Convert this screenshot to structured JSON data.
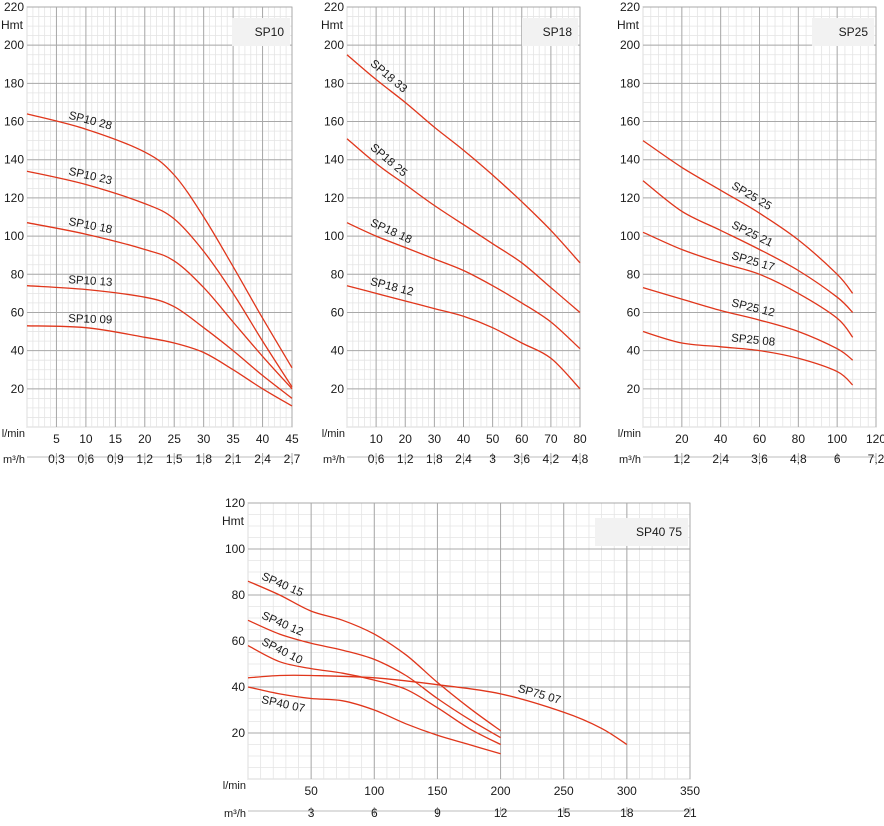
{
  "chart_data": [
    {
      "type": "line",
      "title": "SP10",
      "ylabel": "Hmt",
      "xlabel": "l/min",
      "x2label": "m³/h",
      "ylim": [
        0,
        220
      ],
      "xlim": [
        0,
        45
      ],
      "yticks": [
        20,
        40,
        60,
        80,
        100,
        120,
        140,
        160,
        180,
        200,
        220
      ],
      "xticks": [
        5,
        10,
        15,
        20,
        25,
        30,
        35,
        40,
        45
      ],
      "x2ticks": [
        "0,3",
        "0,6",
        "0,9",
        "1,2",
        "1,5",
        "1,8",
        "2,1",
        "2,4",
        "2,7"
      ],
      "grid": true,
      "series": [
        {
          "name": "SP10 28",
          "x": [
            0,
            10,
            20,
            25,
            30,
            35,
            40,
            45
          ],
          "y": [
            164,
            156,
            144,
            132,
            110,
            84,
            57,
            31
          ]
        },
        {
          "name": "SP10 23",
          "x": [
            0,
            10,
            20,
            25,
            30,
            35,
            40,
            45
          ],
          "y": [
            134,
            127,
            117,
            109,
            92,
            70,
            45,
            21
          ]
        },
        {
          "name": "SP10 18",
          "x": [
            0,
            10,
            20,
            25,
            30,
            35,
            40,
            45
          ],
          "y": [
            107,
            101,
            93,
            87,
            73,
            55,
            37,
            20
          ]
        },
        {
          "name": "SP10 13",
          "x": [
            0,
            10,
            20,
            25,
            30,
            35,
            40,
            45
          ],
          "y": [
            74,
            72,
            68,
            63,
            52,
            40,
            27,
            15
          ]
        },
        {
          "name": "SP10 09",
          "x": [
            0,
            10,
            20,
            25,
            30,
            35,
            40,
            45
          ],
          "y": [
            53,
            52,
            47,
            44,
            39,
            30,
            20,
            11
          ]
        }
      ]
    },
    {
      "type": "line",
      "title": "SP18",
      "ylabel": "Hmt",
      "xlabel": "l/min",
      "x2label": "m³/h",
      "ylim": [
        0,
        220
      ],
      "xlim": [
        0,
        80
      ],
      "yticks": [
        20,
        40,
        60,
        80,
        100,
        120,
        140,
        160,
        180,
        200,
        220
      ],
      "xticks": [
        10,
        20,
        30,
        40,
        50,
        60,
        70,
        80
      ],
      "x2ticks": [
        "0,6",
        "1,2",
        "1,8",
        "2,4",
        "3",
        "3,6",
        "4,2",
        "4,8"
      ],
      "grid": true,
      "series": [
        {
          "name": "SP18 33",
          "x": [
            0,
            10,
            20,
            30,
            40,
            50,
            60,
            70,
            80
          ],
          "y": [
            195,
            182,
            170,
            157,
            145,
            132,
            118,
            103,
            86
          ]
        },
        {
          "name": "SP18 25",
          "x": [
            0,
            10,
            20,
            30,
            40,
            50,
            60,
            70,
            80
          ],
          "y": [
            151,
            138,
            127,
            116,
            106,
            96,
            86,
            73,
            60
          ]
        },
        {
          "name": "SP18 18",
          "x": [
            0,
            10,
            20,
            30,
            40,
            50,
            60,
            70,
            80
          ],
          "y": [
            107,
            100,
            94,
            88,
            82,
            74,
            65,
            55,
            41
          ]
        },
        {
          "name": "SP18 12",
          "x": [
            0,
            10,
            20,
            30,
            40,
            50,
            60,
            70,
            80
          ],
          "y": [
            74,
            70,
            66,
            62,
            58,
            52,
            44,
            36,
            20
          ]
        }
      ]
    },
    {
      "type": "line",
      "title": "SP25",
      "ylabel": "Hmt",
      "xlabel": "l/min",
      "x2label": "m³/h",
      "ylim": [
        0,
        220
      ],
      "xlim": [
        0,
        120
      ],
      "yticks": [
        20,
        40,
        60,
        80,
        100,
        120,
        140,
        160,
        180,
        200,
        220
      ],
      "xticks": [
        20,
        40,
        60,
        80,
        100,
        120
      ],
      "x2ticks": [
        "1,2",
        "2,4",
        "3,6",
        "4,8",
        "6",
        "7,2"
      ],
      "grid": true,
      "series": [
        {
          "name": "SP25 25",
          "x": [
            0,
            20,
            40,
            60,
            80,
            100,
            108
          ],
          "y": [
            150,
            136,
            124,
            112,
            98,
            80,
            70
          ]
        },
        {
          "name": "SP25 21",
          "x": [
            0,
            20,
            40,
            60,
            80,
            100,
            108
          ],
          "y": [
            129,
            113,
            103,
            93,
            82,
            68,
            60
          ]
        },
        {
          "name": "SP25 17",
          "x": [
            0,
            20,
            40,
            60,
            80,
            100,
            108
          ],
          "y": [
            102,
            93,
            86,
            80,
            70,
            57,
            47
          ]
        },
        {
          "name": "SP25 12",
          "x": [
            0,
            20,
            40,
            60,
            80,
            100,
            108
          ],
          "y": [
            73,
            67,
            61,
            56,
            50,
            41,
            35
          ]
        },
        {
          "name": "SP25 08",
          "x": [
            0,
            20,
            40,
            60,
            80,
            100,
            108
          ],
          "y": [
            50,
            44,
            42,
            40,
            36,
            29,
            22
          ]
        }
      ]
    },
    {
      "type": "line",
      "title": "SP40 75",
      "ylabel": "Hmt",
      "xlabel": "l/min",
      "x2label": "m³/h",
      "ylim": [
        0,
        120
      ],
      "xlim": [
        0,
        350
      ],
      "yticks": [
        20,
        40,
        60,
        80,
        100,
        120
      ],
      "xticks": [
        50,
        100,
        150,
        200,
        250,
        300,
        350
      ],
      "x2ticks": [
        "3",
        "6",
        "9",
        "12",
        "15",
        "18",
        "21"
      ],
      "grid": true,
      "series": [
        {
          "name": "SP40 15",
          "x": [
            0,
            25,
            50,
            75,
            100,
            125,
            150,
            175,
            200
          ],
          "y": [
            86,
            80,
            73,
            69,
            63,
            54,
            42,
            31,
            21
          ]
        },
        {
          "name": "SP40 12",
          "x": [
            0,
            25,
            50,
            75,
            100,
            125,
            150,
            175,
            200
          ],
          "y": [
            69,
            63,
            59,
            56,
            52,
            45,
            35,
            26,
            18
          ]
        },
        {
          "name": "SP40 10",
          "x": [
            0,
            25,
            50,
            75,
            100,
            125,
            150,
            175,
            200
          ],
          "y": [
            58,
            51,
            48,
            46,
            43,
            39,
            31,
            22,
            15
          ]
        },
        {
          "name": "SP40 07",
          "x": [
            0,
            25,
            50,
            75,
            100,
            125,
            150,
            175,
            200
          ],
          "y": [
            40,
            37,
            35,
            34,
            30,
            24,
            19,
            15,
            11
          ]
        },
        {
          "name": "SP75 07",
          "x": [
            0,
            25,
            50,
            100,
            150,
            200,
            250,
            280,
            300
          ],
          "y": [
            44,
            45,
            45,
            44,
            41,
            37,
            29,
            22,
            15
          ]
        }
      ]
    }
  ]
}
